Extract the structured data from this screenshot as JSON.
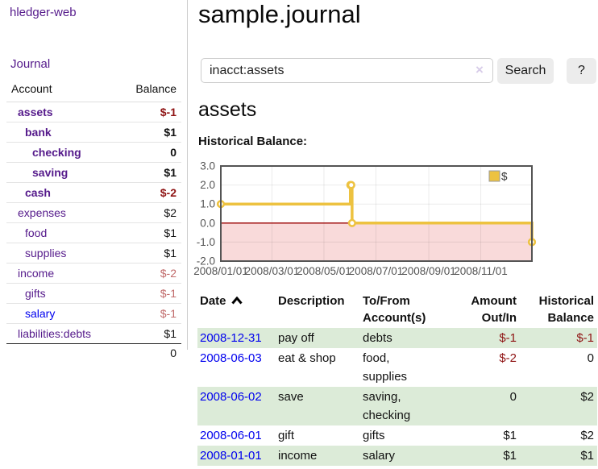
{
  "colors": {
    "link_visited": "#551A8B",
    "link_unvisited": "#0000EE",
    "negative_strong": "#8f1414",
    "negative_soft": "#c06a6a",
    "stripe_green": "#dcebd8"
  },
  "sidebar": {
    "brand": "hledger-web",
    "nav_journal": "Journal",
    "table": {
      "header_account": "Account",
      "header_balance": "Balance",
      "accounts": [
        {
          "name": "assets",
          "indent": 1,
          "bold": true,
          "balance": "$-1",
          "neg": "strong",
          "link": "purple"
        },
        {
          "name": "bank",
          "indent": 2,
          "bold": true,
          "balance": "$1",
          "neg": null,
          "link": "purple"
        },
        {
          "name": "checking",
          "indent": 3,
          "bold": true,
          "balance": "0",
          "neg": null,
          "link": "purple"
        },
        {
          "name": "saving",
          "indent": 3,
          "bold": true,
          "balance": "$1",
          "neg": null,
          "link": "purple"
        },
        {
          "name": "cash",
          "indent": 2,
          "bold": true,
          "balance": "$-2",
          "neg": "strong",
          "link": "purple"
        },
        {
          "name": "expenses",
          "indent": 1,
          "bold": false,
          "balance": "$2",
          "neg": null,
          "link": "purple"
        },
        {
          "name": "food",
          "indent": 2,
          "bold": false,
          "balance": "$1",
          "neg": null,
          "link": "purple"
        },
        {
          "name": "supplies",
          "indent": 2,
          "bold": false,
          "balance": "$1",
          "neg": null,
          "link": "purple"
        },
        {
          "name": "income",
          "indent": 1,
          "bold": false,
          "balance": "$-2",
          "neg": "soft",
          "link": "purple"
        },
        {
          "name": "gifts",
          "indent": 2,
          "bold": false,
          "balance": "$-1",
          "neg": "soft",
          "link": "purple"
        },
        {
          "name": "salary",
          "indent": 2,
          "bold": false,
          "balance": "$-1",
          "neg": "soft",
          "link": "blue"
        },
        {
          "name": "liabilities:debts",
          "indent": 1,
          "bold": false,
          "balance": "$1",
          "neg": null,
          "link": "purple"
        }
      ],
      "total": "0"
    }
  },
  "main": {
    "title": "sample.journal",
    "search": {
      "value": "inacct:assets",
      "clear_icon": "×",
      "button_label": "Search",
      "help_label": "?"
    },
    "section_title": "assets",
    "chart_label": "Historical Balance:",
    "table": {
      "headers": [
        {
          "lines": [
            "Date"
          ],
          "sorted": "asc",
          "align": "left"
        },
        {
          "lines": [
            "Description"
          ],
          "align": "left"
        },
        {
          "lines": [
            "To/From",
            "Account(s)"
          ],
          "align": "left"
        },
        {
          "lines": [
            "Amount",
            "Out/In"
          ],
          "align": "right"
        },
        {
          "lines": [
            "Historical",
            "Balance"
          ],
          "align": "right"
        }
      ],
      "rows": [
        {
          "date": "2008-12-31",
          "description": "pay off",
          "accounts": "debts",
          "amount": "$-1",
          "amount_neg": true,
          "balance": "$-1",
          "balance_neg": true
        },
        {
          "date": "2008-06-03",
          "description": "eat & shop",
          "accounts": "food, supplies",
          "amount": "$-2",
          "amount_neg": true,
          "balance": "0",
          "balance_neg": false
        },
        {
          "date": "2008-06-02",
          "description": "save",
          "accounts": "saving,\nchecking",
          "amount": "0",
          "amount_neg": false,
          "balance": "$2",
          "balance_neg": false
        },
        {
          "date": "2008-06-01",
          "description": "gift",
          "accounts": "gifts",
          "amount": "$1",
          "amount_neg": false,
          "balance": "$2",
          "balance_neg": false
        },
        {
          "date": "2008-01-01",
          "description": "income",
          "accounts": "salary",
          "amount": "$1",
          "amount_neg": false,
          "balance": "$1",
          "balance_neg": false
        }
      ]
    }
  },
  "chart_data": {
    "type": "line",
    "title": "Historical Balance",
    "interpolation": "step-after",
    "x_range": [
      "2008-01-01",
      "2008-12-31"
    ],
    "ylim": [
      -2,
      3
    ],
    "grid": true,
    "y_ticks": [
      {
        "v": 3,
        "label": "3.0"
      },
      {
        "v": 2,
        "label": "2.0"
      },
      {
        "v": 1,
        "label": "1.0"
      },
      {
        "v": 0,
        "label": "0.0"
      },
      {
        "v": -1,
        "label": "-1.0"
      },
      {
        "v": -2,
        "label": "-2.0"
      }
    ],
    "x_ticks": [
      {
        "date": "2008-01-01",
        "label": "2008/01/01"
      },
      {
        "date": "2008-03-01",
        "label": "2008/03/01"
      },
      {
        "date": "2008-05-01",
        "label": "2008/05/01"
      },
      {
        "date": "2008-07-01",
        "label": "2008/07/01"
      },
      {
        "date": "2008-09-01",
        "label": "2008/09/01"
      },
      {
        "date": "2008-11-01",
        "label": "2008/11/01"
      }
    ],
    "legend": {
      "label": "$",
      "position": "top-right"
    },
    "series": [
      {
        "name": "$",
        "color": "#EDC240",
        "points": [
          [
            "2008-01-01",
            1
          ],
          [
            "2008-06-01",
            2
          ],
          [
            "2008-06-02",
            2
          ],
          [
            "2008-06-03",
            0
          ],
          [
            "2008-12-31",
            -1
          ]
        ]
      }
    ],
    "styles": {
      "negative_region_fill": "#f9dada",
      "zero_line_color": "#990000",
      "gridline_color": "rgba(0,0,0,0.08)",
      "plot_border": "#545454",
      "axis_text": "#545454",
      "marker_fill": "#ffffff"
    }
  }
}
